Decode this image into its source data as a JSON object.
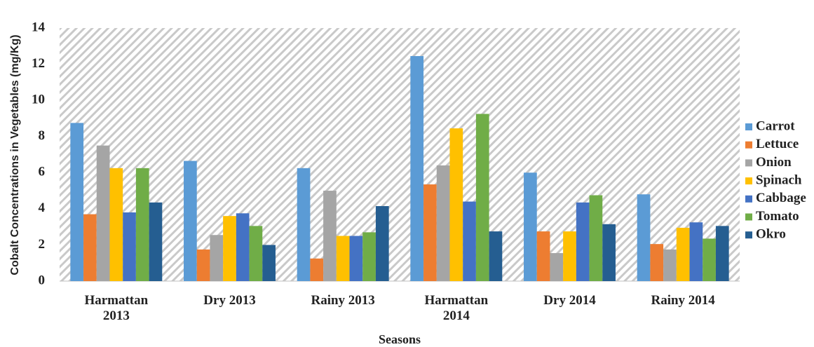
{
  "chart_data": {
    "type": "bar",
    "ylabel": "Cobalt Concentrations in Vegetables (mg/Kg)",
    "xlabel": "Seasons",
    "categories": [
      "Harmattan 2013",
      "Dry 2013",
      "Rainy 2013",
      "Harmattan 2014",
      "Dry 2014",
      "Rainy 2014"
    ],
    "series": [
      {
        "name": "Carrot",
        "color": "#5b9bd5",
        "values": [
          8.75,
          6.65,
          6.25,
          12.45,
          6.0,
          4.8
        ]
      },
      {
        "name": "Lettuce",
        "color": "#ed7d31",
        "values": [
          3.7,
          1.75,
          1.25,
          5.35,
          2.75,
          2.05
        ]
      },
      {
        "name": "Onion",
        "color": "#a5a5a5",
        "values": [
          7.5,
          2.55,
          5.0,
          6.4,
          1.55,
          1.75
        ]
      },
      {
        "name": "Spinach",
        "color": "#ffc000",
        "values": [
          6.25,
          3.6,
          2.5,
          8.45,
          2.75,
          2.95
        ]
      },
      {
        "name": "Cabbage",
        "color": "#4472c4",
        "values": [
          3.8,
          3.75,
          2.5,
          4.4,
          4.35,
          3.25
        ]
      },
      {
        "name": "Tomato",
        "color": "#70ad47",
        "values": [
          6.25,
          3.05,
          2.7,
          9.25,
          4.75,
          2.35
        ]
      },
      {
        "name": "Okro",
        "color": "#255e91",
        "values": [
          4.35,
          2.0,
          4.15,
          2.75,
          3.15,
          3.05
        ]
      }
    ],
    "ylim": [
      0,
      14
    ],
    "yticks": [
      0,
      2,
      4,
      6,
      8,
      10,
      12,
      14
    ],
    "legend": "right"
  }
}
